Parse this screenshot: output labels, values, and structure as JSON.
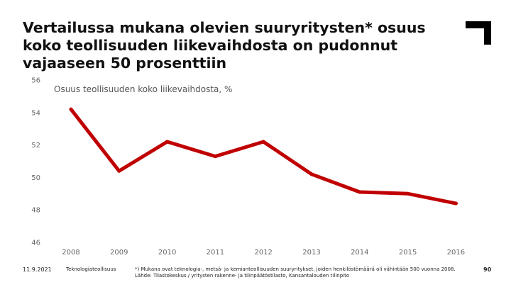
{
  "title": "Vertailussa mukana olevien suuryritysten* osuus koko teollisuuden liikevaihdosta on pudonnut vajaaseen 50 prosenttiin",
  "footer": {
    "date": "11.9.2021",
    "organization": "Teknologiateollisuus",
    "note": "*) Mukana ovat teknologia-, metsä- ja kemianteollisuuden suuryritykset, joiden henkilöstömäärä oli vähintään 500 vuonna 2008.",
    "source": "Lähde: Tilastokeskus / yritysten rakenne- ja tilinpäätöstilasto, Kansantalouden tilinpito",
    "page_number": "90"
  },
  "chart_data": {
    "type": "line",
    "title": "",
    "subtitle": "Osuus teollisuuden koko liikevaihdosta, %",
    "xlabel": "",
    "ylabel": "",
    "x": [
      "2008",
      "2009",
      "2010",
      "2011",
      "2012",
      "2013",
      "2014",
      "2015",
      "2016"
    ],
    "series": [
      {
        "values": [
          54.2,
          50.4,
          52.2,
          51.3,
          52.2,
          50.2,
          49.1,
          49.0,
          48.4
        ],
        "color": "#c00000"
      }
    ],
    "ylim": [
      46,
      56
    ],
    "yticks": [
      "46",
      "48",
      "50",
      "52",
      "54",
      "56"
    ],
    "grid": false,
    "legend": "none"
  }
}
